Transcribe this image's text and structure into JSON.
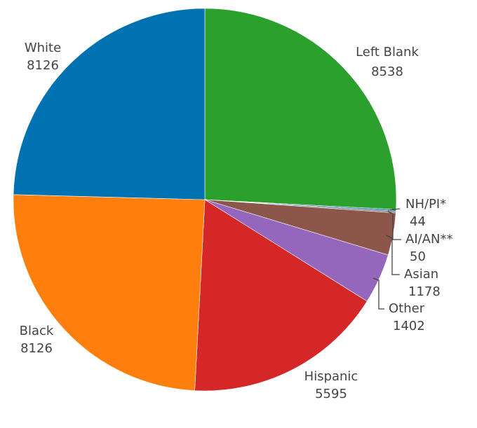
{
  "chart_data": {
    "type": "pie",
    "slices": [
      {
        "label": "Left Blank",
        "value": 8538,
        "color": "#2ca02c"
      },
      {
        "label": "NH/PI*",
        "value": 44,
        "color": "#1f77b4"
      },
      {
        "label": "AI/AN**",
        "value": 50,
        "color": "#7f7f7f"
      },
      {
        "label": "Asian",
        "value": 1178,
        "color": "#8c564b"
      },
      {
        "label": "Other",
        "value": 1402,
        "color": "#9467bd"
      },
      {
        "label": "Hispanic",
        "value": 5595,
        "color": "#d62728"
      },
      {
        "label": "Black",
        "value": 8126,
        "color": "#ff7f0e"
      },
      {
        "label": "White",
        "value": 8126,
        "color": "#0072b2"
      }
    ],
    "direction": "clockwise",
    "start": "top"
  }
}
